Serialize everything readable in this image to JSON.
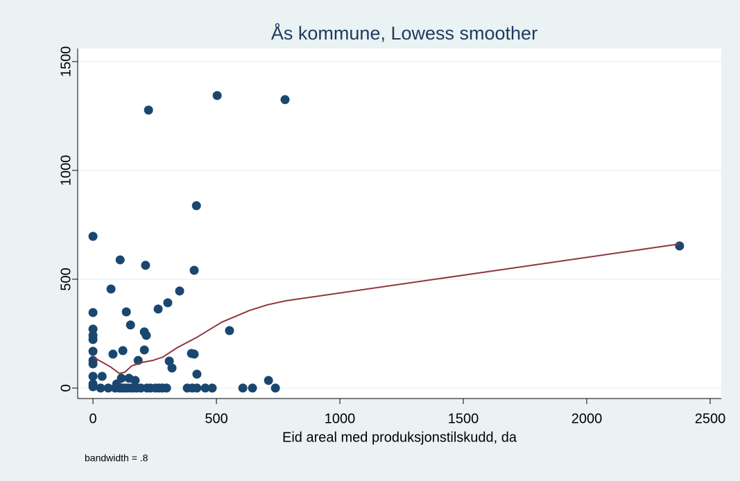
{
  "chart_data": {
    "type": "scatter",
    "title": "Ås kommune, Lowess smoother",
    "x_label": "Eid areal med produksjonstilskudd, da",
    "note": "bandwidth = .8",
    "xlim": [
      -62,
      2545
    ],
    "ylim": [
      -48,
      1560
    ],
    "xticks": [
      0,
      500,
      1000,
      1500,
      2000,
      2500
    ],
    "yticks": [
      0,
      500,
      1000,
      1500
    ],
    "grid": true,
    "series": [
      {
        "type": "scatter",
        "color": "#1a476f",
        "x": [
          225,
          503,
          778,
          419,
          0,
          110,
          213,
          410,
          73,
          351,
          303,
          264,
          135,
          0,
          152,
          0,
          208,
          216,
          0,
          0,
          553,
          121,
          208,
          81,
          0,
          183,
          399,
          410,
          309,
          0,
          0,
          320,
          421,
          0,
          37,
          115,
          146,
          171,
          711,
          0,
          0,
          96,
          2376,
          31,
          62,
          90,
          107,
          118,
          129,
          140,
          152,
          163,
          177,
          194,
          219,
          233,
          253,
          267,
          281,
          298,
          382,
          402,
          421,
          455,
          483,
          607,
          646,
          739
        ],
        "values": [
          1277,
          1344,
          1325,
          838,
          697,
          589,
          564,
          541,
          455,
          446,
          392,
          363,
          350,
          347,
          290,
          271,
          258,
          242,
          242,
          223,
          264,
          172,
          175,
          156,
          169,
          127,
          159,
          156,
          124,
          127,
          111,
          92,
          64,
          54,
          54,
          45,
          45,
          35,
          35,
          19,
          6,
          19,
          653,
          0,
          0,
          0,
          0,
          0,
          0,
          0,
          0,
          0,
          0,
          0,
          0,
          0,
          0,
          0,
          0,
          0,
          0,
          0,
          0,
          0,
          0,
          0,
          0,
          0
        ]
      },
      {
        "type": "line",
        "color": "#90353b",
        "x": [
          0,
          73,
          107,
          129,
          157,
          199,
          242,
          284,
          340,
          419,
          522,
          635,
          705,
          781,
          2376
        ],
        "values": [
          143,
          96,
          67,
          73,
          102,
          118,
          127,
          143,
          185,
          232,
          303,
          357,
          382,
          401,
          662
        ]
      }
    ]
  }
}
